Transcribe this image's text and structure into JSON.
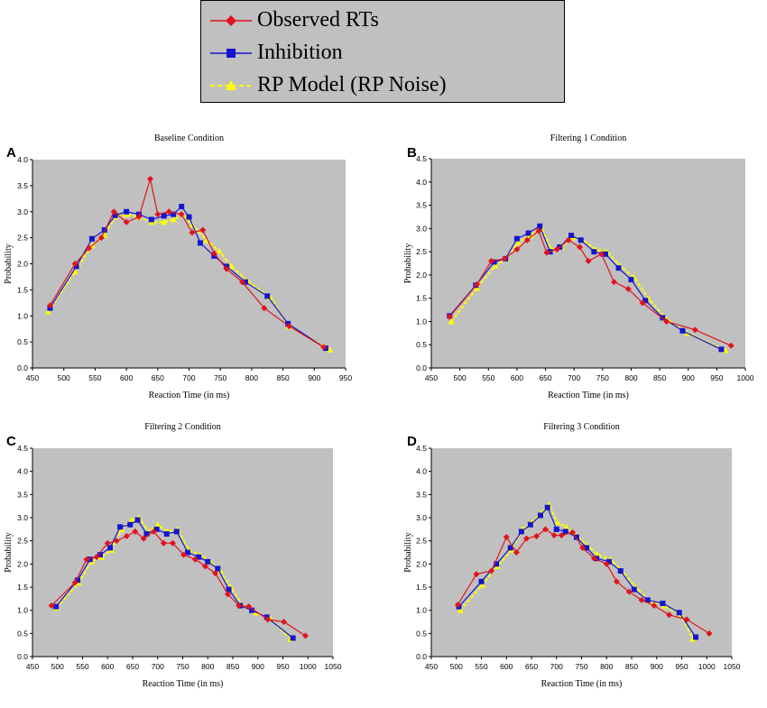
{
  "legend": {
    "items": [
      {
        "label": "Observed RTs",
        "color": "#e0141e",
        "marker": "diamond",
        "dash": false
      },
      {
        "label": "Inhibition",
        "color": "#1414d2",
        "marker": "square",
        "dash": false
      },
      {
        "label": "RP Model (RP Noise)",
        "color": "#ffff00",
        "marker": "triangle",
        "dash": true
      }
    ]
  },
  "chart_data": [
    {
      "letter": "A",
      "type": "line",
      "title": "Baseline Condition",
      "xlabel": "Reaction Time (in ms)",
      "ylabel": "Probability",
      "xlim": [
        450,
        950
      ],
      "xticks": [
        450,
        500,
        550,
        600,
        650,
        700,
        750,
        800,
        850,
        900,
        950
      ],
      "ylim": [
        0,
        4
      ],
      "yticks": [
        "0.0",
        "0.5",
        "1.0",
        "1.5",
        "2.0",
        "2.5",
        "3.0",
        "3.5",
        "4.0"
      ],
      "series": [
        {
          "name": "Observed RTs",
          "x": [
            478,
            518,
            540,
            560,
            580,
            600,
            620,
            638,
            650,
            668,
            688,
            705,
            722,
            740,
            760,
            785,
            820,
            860,
            915
          ],
          "y": [
            1.2,
            2.0,
            2.3,
            2.5,
            3.0,
            2.8,
            2.9,
            3.63,
            2.95,
            3.0,
            2.95,
            2.6,
            2.65,
            2.2,
            1.9,
            1.65,
            1.15,
            0.8,
            0.4
          ]
        },
        {
          "name": "Inhibition",
          "x": [
            478,
            520,
            545,
            565,
            582,
            600,
            620,
            640,
            660,
            675,
            688,
            700,
            718,
            740,
            760,
            790,
            825,
            858,
            918
          ],
          "y": [
            1.15,
            1.95,
            2.48,
            2.65,
            2.93,
            3.0,
            2.95,
            2.85,
            2.92,
            2.95,
            3.1,
            2.9,
            2.4,
            2.15,
            1.95,
            1.65,
            1.38,
            0.85,
            0.38
          ]
        },
        {
          "name": "RP Model (RP Noise)",
          "x": [
            475,
            518,
            545,
            565,
            582,
            600,
            620,
            640,
            660,
            675,
            690,
            705,
            728,
            748,
            768,
            795,
            830,
            860,
            925
          ],
          "y": [
            1.08,
            1.85,
            2.35,
            2.55,
            2.9,
            2.95,
            2.9,
            2.8,
            2.8,
            2.85,
            2.95,
            2.75,
            2.45,
            2.25,
            1.95,
            1.65,
            1.35,
            0.8,
            0.35
          ]
        }
      ]
    },
    {
      "letter": "B",
      "type": "line",
      "title": "Filtering 1 Condition",
      "xlabel": "Reaction Time (in ms)",
      "ylabel": "Probability",
      "xlim": [
        450,
        1000
      ],
      "xticks": [
        450,
        500,
        550,
        600,
        650,
        700,
        750,
        800,
        850,
        900,
        950,
        1000
      ],
      "ylim": [
        0,
        4.5
      ],
      "yticks": [
        "0.0",
        "0.5",
        "1.0",
        "1.5",
        "2.0",
        "2.5",
        "3.0",
        "3.5",
        "4.0",
        "4.5"
      ],
      "series": [
        {
          "name": "Observed RTs",
          "x": [
            482,
            530,
            555,
            578,
            600,
            618,
            638,
            652,
            670,
            690,
            710,
            725,
            748,
            770,
            795,
            820,
            862,
            912,
            975
          ],
          "y": [
            1.1,
            1.8,
            2.3,
            2.35,
            2.55,
            2.75,
            2.95,
            2.48,
            2.55,
            2.75,
            2.6,
            2.3,
            2.45,
            1.85,
            1.7,
            1.4,
            1.0,
            0.82,
            0.48
          ]
        },
        {
          "name": "Inhibition",
          "x": [
            482,
            528,
            560,
            580,
            600,
            620,
            640,
            658,
            675,
            695,
            712,
            735,
            755,
            778,
            800,
            825,
            855,
            890,
            958
          ],
          "y": [
            1.12,
            1.78,
            2.28,
            2.35,
            2.78,
            2.9,
            3.05,
            2.5,
            2.6,
            2.85,
            2.75,
            2.5,
            2.45,
            2.15,
            1.9,
            1.45,
            1.08,
            0.8,
            0.4
          ]
        },
        {
          "name": "RP Model (RP Noise)",
          "x": [
            485,
            530,
            562,
            582,
            602,
            625,
            642,
            660,
            678,
            697,
            715,
            738,
            758,
            780,
            805,
            830,
            862,
            898,
            965
          ],
          "y": [
            1.0,
            1.72,
            2.2,
            2.35,
            2.7,
            2.85,
            3.05,
            2.55,
            2.6,
            2.8,
            2.75,
            2.55,
            2.5,
            2.2,
            1.95,
            1.5,
            1.05,
            0.75,
            0.38
          ]
        }
      ]
    },
    {
      "letter": "C",
      "type": "line",
      "title": "Filtering 2 Condition",
      "xlabel": "Reaction Time (in ms)",
      "ylabel": "Probability",
      "xlim": [
        450,
        1050
      ],
      "xticks": [
        450,
        500,
        550,
        600,
        650,
        700,
        750,
        800,
        850,
        900,
        950,
        1000,
        1050
      ],
      "ylim": [
        0,
        4.5
      ],
      "yticks": [
        "0.0",
        "0.5",
        "1.0",
        "1.5",
        "2.0",
        "2.5",
        "3.0",
        "3.5",
        "4.0",
        "4.5"
      ],
      "series": [
        {
          "name": "Observed RTs",
          "x": [
            488,
            535,
            558,
            578,
            600,
            618,
            638,
            655,
            672,
            692,
            712,
            730,
            752,
            775,
            795,
            815,
            840,
            862,
            882,
            920,
            952,
            995
          ],
          "y": [
            1.1,
            1.6,
            2.1,
            2.15,
            2.45,
            2.5,
            2.6,
            2.7,
            2.55,
            2.7,
            2.45,
            2.45,
            2.2,
            2.1,
            1.95,
            1.8,
            1.35,
            1.1,
            1.08,
            0.8,
            0.75,
            0.45
          ]
        },
        {
          "name": "Inhibition",
          "x": [
            497,
            540,
            565,
            585,
            605,
            625,
            645,
            660,
            678,
            698,
            718,
            738,
            760,
            782,
            800,
            820,
            842,
            865,
            888,
            918,
            970
          ],
          "y": [
            1.08,
            1.65,
            2.1,
            2.2,
            2.35,
            2.8,
            2.85,
            2.95,
            2.65,
            2.75,
            2.65,
            2.7,
            2.25,
            2.15,
            2.05,
            1.9,
            1.45,
            1.1,
            1.0,
            0.85,
            0.4
          ]
        },
        {
          "name": "RP Model (RP Noise)",
          "x": [
            498,
            542,
            568,
            588,
            608,
            628,
            648,
            663,
            682,
            700,
            720,
            740,
            762,
            785,
            805,
            825,
            846,
            870,
            895,
            925,
            965
          ],
          "y": [
            1.05,
            1.6,
            2.05,
            2.15,
            2.3,
            2.75,
            2.95,
            3.0,
            2.7,
            2.85,
            2.7,
            2.75,
            2.3,
            2.2,
            2.05,
            1.85,
            1.5,
            1.1,
            0.95,
            0.82,
            0.38
          ]
        }
      ]
    },
    {
      "letter": "D",
      "type": "line",
      "title": "Filtering 3 Condition",
      "xlabel": "Reaction Time (in ms)",
      "ylabel": "Probability",
      "xlim": [
        450,
        1050
      ],
      "xticks": [
        450,
        500,
        550,
        600,
        650,
        700,
        750,
        800,
        850,
        900,
        950,
        1000,
        1050
      ],
      "ylim": [
        0,
        4.5
      ],
      "yticks": [
        "0.0",
        "0.5",
        "1.0",
        "1.5",
        "2.0",
        "2.5",
        "3.0",
        "3.5",
        "4.0",
        "4.5"
      ],
      "series": [
        {
          "name": "Observed RTs",
          "x": [
            503,
            540,
            570,
            600,
            620,
            640,
            660,
            678,
            695,
            710,
            732,
            752,
            775,
            800,
            820,
            845,
            870,
            895,
            925,
            960,
            1005
          ],
          "y": [
            1.12,
            1.78,
            1.85,
            2.58,
            2.25,
            2.55,
            2.6,
            2.75,
            2.62,
            2.62,
            2.68,
            2.35,
            2.12,
            2.0,
            1.62,
            1.4,
            1.22,
            1.1,
            0.9,
            0.8,
            0.5
          ]
        },
        {
          "name": "Inhibition",
          "x": [
            505,
            550,
            580,
            608,
            630,
            648,
            668,
            682,
            700,
            718,
            740,
            760,
            780,
            805,
            828,
            855,
            882,
            912,
            945,
            978
          ],
          "y": [
            1.08,
            1.62,
            2.0,
            2.35,
            2.7,
            2.85,
            3.05,
            3.22,
            2.75,
            2.7,
            2.58,
            2.35,
            2.12,
            2.05,
            1.85,
            1.45,
            1.22,
            1.15,
            0.95,
            0.42
          ]
        },
        {
          "name": "RP Model (RP Noise)",
          "x": [
            508,
            552,
            582,
            610,
            632,
            650,
            670,
            685,
            702,
            720,
            742,
            762,
            782,
            808,
            830,
            858,
            885,
            915,
            948,
            972
          ],
          "y": [
            1.0,
            1.55,
            1.95,
            2.3,
            2.75,
            2.9,
            3.1,
            3.28,
            2.9,
            2.8,
            2.6,
            2.4,
            2.2,
            2.1,
            1.85,
            1.5,
            1.2,
            1.1,
            0.9,
            0.38
          ]
        }
      ]
    }
  ]
}
